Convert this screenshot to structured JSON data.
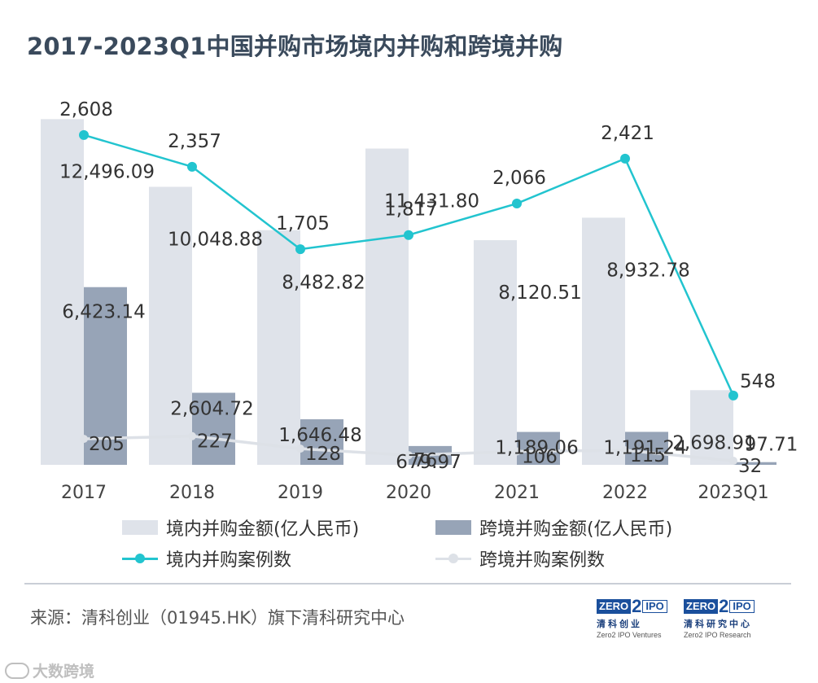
{
  "title": "2017-2023Q1中国并购市场境内并购和跨境并购",
  "chart_data": {
    "type": "bar",
    "categories": [
      "2017",
      "2018",
      "2019",
      "2020",
      "2021",
      "2022",
      "2023Q1"
    ],
    "series": [
      {
        "name": "境内并购金额(亿人民币)",
        "kind": "bar",
        "axis": "left",
        "color": "#dfe3ea",
        "values": [
          12496.09,
          10048.88,
          8482.82,
          11431.8,
          8120.51,
          8932.78,
          2698.91
        ],
        "labels": [
          "12,496.09",
          "10,048.88",
          "8,482.82",
          "11,431.80",
          "8,120.51",
          "8,932.78",
          "2,698.91"
        ]
      },
      {
        "name": "跨境并购金额(亿人民币)",
        "kind": "bar",
        "axis": "left",
        "color": "#97a4b7",
        "values": [
          6423.14,
          2604.72,
          1646.48,
          679.97,
          1189.06,
          1191.24,
          97.71
        ],
        "labels": [
          "6,423.14",
          "2,604.72",
          "1,646.48",
          "679.97",
          "1,189.06",
          "1,191.24",
          "97.71"
        ]
      },
      {
        "name": "境内并购案例数",
        "kind": "line",
        "axis": "right",
        "color": "#22c4cf",
        "values": [
          2608,
          2357,
          1705,
          1817,
          2066,
          2421,
          548
        ],
        "labels": [
          "2,608",
          "2,357",
          "1,705",
          "1,817",
          "2,066",
          "2,421",
          "548"
        ]
      },
      {
        "name": "跨境并购案例数",
        "kind": "line",
        "axis": "right",
        "color": "#dde1e7",
        "values": [
          205,
          227,
          128,
          76,
          106,
          115,
          32
        ],
        "labels": [
          "205",
          "227",
          "128",
          "76",
          "106",
          "115",
          "32"
        ]
      }
    ],
    "ylim_left": [
      0,
      12800
    ],
    "ylim_right": [
      0,
      2800
    ],
    "legend_position": "bottom",
    "grid": false
  },
  "source": "来源：清科创业（01945.HK）旗下清科研究中心",
  "logos": [
    {
      "zero": "ZERO",
      "two": "2",
      "ipo": "IPO",
      "cn": "清科创业",
      "en": "Zero2 IPO Ventures"
    },
    {
      "zero": "ZERO",
      "two": "2",
      "ipo": "IPO",
      "cn": "清科研究中心",
      "en": "Zero2 IPO Research"
    }
  ],
  "watermark": "大数跨境"
}
